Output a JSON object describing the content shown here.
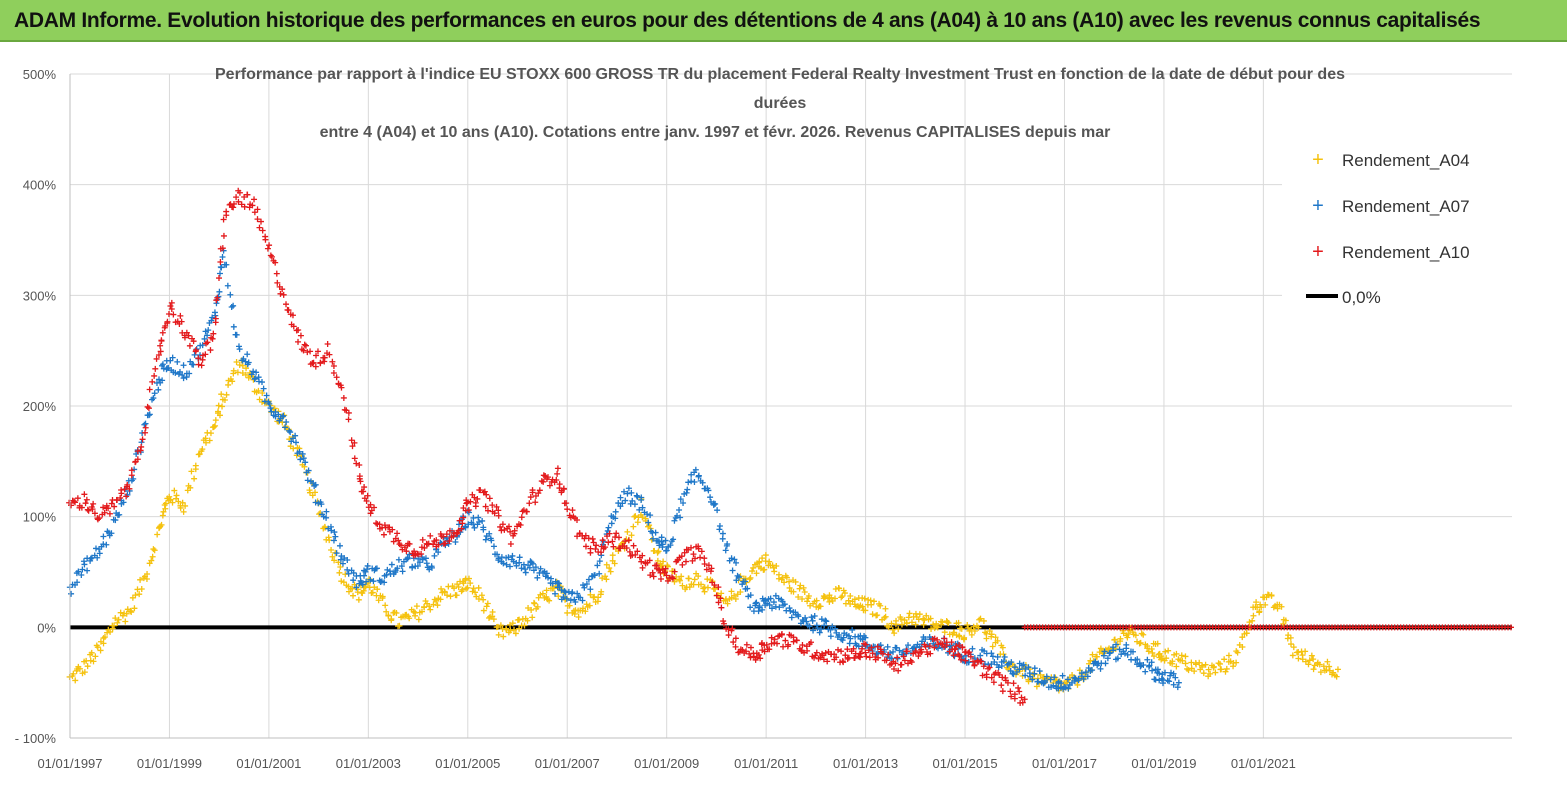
{
  "banner": {
    "text": "ADAM Informe. Evolution historique des performances en euros pour des détentions de 4 ans (A04) à 10 ans (A10) avec les revenus connus capitalisés"
  },
  "colors": {
    "banner_bg": "#8fcf5c",
    "a04": "#f5c20f",
    "a07": "#1f77c8",
    "a10": "#e31a1c",
    "zero": "#000000",
    "grid": "#d9d9d9"
  },
  "chart_data": {
    "type": "scatter",
    "title_lines": [
      "Performance par rapport à l'indice EU STOXX 600 GROSS TR  du placement Federal Realty Investment Trust en fonction de la date de début pour des",
      "durées",
      "entre 4 (A04) et 10 ans (A10). Cotations entre janv. 1997 et févr. 2026. Revenus CAPITALISES depuis mar"
    ],
    "xlabel": "",
    "ylabel": "",
    "xlim": [
      1997.0,
      2026.0
    ],
    "ylim": [
      -100,
      500
    ],
    "ytick_values": [
      -100,
      0,
      100,
      200,
      300,
      400,
      500
    ],
    "ytick_labels": [
      "- 100%",
      "0%",
      "100%",
      "200%",
      "300%",
      "400%",
      "500%"
    ],
    "xtick_values": [
      1997,
      1999,
      2001,
      2003,
      2005,
      2007,
      2009,
      2011,
      2013,
      2015,
      2017,
      2019,
      2021
    ],
    "xtick_labels": [
      "01/01/1997",
      "01/01/1999",
      "01/01/2001",
      "01/01/2003",
      "01/01/2005",
      "01/01/2007",
      "01/01/2009",
      "01/01/2011",
      "01/01/2013",
      "01/01/2015",
      "01/01/2017",
      "01/01/2019",
      "01/01/2021"
    ],
    "grid": true,
    "legend_position": "top-right",
    "series": [
      {
        "name": "Rendement_A04",
        "marker": "+",
        "color": "#f5c20f",
        "x": [
          1997.0,
          1997.3,
          1997.6,
          1997.9,
          1998.2,
          1998.5,
          1998.8,
          1999.0,
          1999.3,
          1999.6,
          1999.9,
          2000.1,
          2000.4,
          2000.7,
          2001.0,
          2001.3,
          2001.6,
          2001.9,
          2002.2,
          2002.5,
          2002.8,
          2003.0,
          2003.3,
          2003.6,
          2003.9,
          2004.2,
          2004.5,
          2004.8,
          2005.0,
          2005.3,
          2005.6,
          2005.9,
          2006.2,
          2006.5,
          2006.8,
          2007.0,
          2007.3,
          2007.6,
          2007.9,
          2008.2,
          2008.5,
          2008.8,
          2009.0,
          2009.3,
          2009.6,
          2009.9,
          2010.2,
          2010.5,
          2010.8,
          2011.0,
          2011.3,
          2011.6,
          2011.9,
          2012.2,
          2012.5,
          2012.8,
          2013.0,
          2013.3,
          2013.6,
          2013.9,
          2014.2,
          2014.5,
          2014.8,
          2015.0,
          2015.3,
          2015.6,
          2015.9,
          2016.2,
          2016.5,
          2016.8,
          2017.0,
          2017.3,
          2017.6,
          2017.9,
          2018.2,
          2018.5,
          2018.8,
          2019.0,
          2019.3,
          2019.6,
          2019.9,
          2020.2,
          2020.5,
          2020.8,
          2021.0,
          2021.3,
          2021.6,
          2021.9,
          2022.2,
          2022.5
        ],
        "y": [
          -47,
          -35,
          -20,
          5,
          15,
          45,
          90,
          120,
          110,
          160,
          180,
          210,
          240,
          220,
          200,
          185,
          155,
          120,
          80,
          45,
          30,
          40,
          20,
          5,
          10,
          20,
          30,
          35,
          40,
          25,
          -5,
          -3,
          10,
          25,
          35,
          20,
          15,
          30,
          60,
          80,
          110,
          65,
          50,
          40,
          45,
          35,
          20,
          40,
          55,
          60,
          45,
          35,
          25,
          25,
          30,
          20,
          20,
          15,
          0,
          10,
          5,
          0,
          0,
          -5,
          5,
          -15,
          -35,
          -40,
          -50,
          -50,
          -55,
          -45,
          -30,
          -20,
          -5,
          -10,
          -20,
          -25,
          -30,
          -35,
          -40,
          -35,
          -25,
          15,
          25,
          20,
          -20,
          -30,
          -35,
          -38
        ]
      },
      {
        "name": "Rendement_A07",
        "marker": "+",
        "color": "#1f77c8",
        "x": [
          1997.0,
          1997.3,
          1997.6,
          1997.9,
          1998.2,
          1998.5,
          1998.8,
          1999.0,
          1999.3,
          1999.6,
          1999.9,
          2000.1,
          2000.4,
          2000.7,
          2001.0,
          2001.3,
          2001.6,
          2001.9,
          2002.2,
          2002.5,
          2002.8,
          2003.0,
          2003.3,
          2003.6,
          2003.9,
          2004.2,
          2004.5,
          2004.8,
          2005.0,
          2005.3,
          2005.6,
          2005.9,
          2006.2,
          2006.5,
          2006.8,
          2007.0,
          2007.3,
          2007.6,
          2007.9,
          2008.2,
          2008.5,
          2008.8,
          2009.0,
          2009.3,
          2009.6,
          2009.9,
          2010.2,
          2010.5,
          2010.8,
          2011.0,
          2011.3,
          2011.6,
          2011.9,
          2012.2,
          2012.5,
          2012.8,
          2013.0,
          2013.3,
          2013.6,
          2013.9,
          2014.2,
          2014.5,
          2014.8,
          2015.0,
          2015.3,
          2015.6,
          2015.9,
          2016.2,
          2016.5,
          2016.8,
          2017.0,
          2017.3,
          2017.6,
          2017.9,
          2018.2,
          2018.5,
          2018.8,
          2019.0,
          2019.3
        ],
        "y": [
          35,
          55,
          70,
          95,
          130,
          180,
          225,
          240,
          230,
          250,
          280,
          340,
          250,
          230,
          200,
          190,
          160,
          125,
          95,
          60,
          40,
          50,
          45,
          55,
          60,
          55,
          75,
          85,
          100,
          90,
          65,
          60,
          55,
          45,
          35,
          25,
          30,
          50,
          100,
          120,
          110,
          80,
          70,
          110,
          140,
          120,
          70,
          40,
          15,
          25,
          20,
          10,
          5,
          0,
          -5,
          -10,
          -15,
          -20,
          -25,
          -20,
          -15,
          -15,
          -20,
          -25,
          -25,
          -30,
          -35,
          -40,
          -45,
          -50,
          -50,
          -45,
          -35,
          -25,
          -20,
          -30,
          -40,
          -45,
          -50
        ]
      },
      {
        "name": "Rendement_A10",
        "marker": "+",
        "color": "#e31a1c",
        "x": [
          1997.0,
          1997.3,
          1997.6,
          1997.9,
          1998.2,
          1998.5,
          1998.8,
          1999.0,
          1999.3,
          1999.6,
          1999.9,
          2000.1,
          2000.4,
          2000.7,
          2001.0,
          2001.3,
          2001.6,
          2001.9,
          2002.2,
          2002.5,
          2002.8,
          2003.0,
          2003.3,
          2003.6,
          2003.9,
          2004.2,
          2004.5,
          2004.8,
          2005.0,
          2005.3,
          2005.6,
          2005.9,
          2006.2,
          2006.5,
          2006.8,
          2007.0,
          2007.3,
          2007.6,
          2007.9,
          2008.2,
          2008.5,
          2008.8,
          2009.0,
          2009.3,
          2009.6,
          2009.9,
          2010.2,
          2010.5,
          2010.8,
          2011.0,
          2011.3,
          2011.6,
          2011.9,
          2012.2,
          2012.5,
          2012.8,
          2013.0,
          2013.3,
          2013.6,
          2013.9,
          2014.2,
          2014.5,
          2014.8,
          2015.0,
          2015.3,
          2015.6,
          2015.9,
          2016.2
        ],
        "y": [
          110,
          115,
          100,
          110,
          130,
          180,
          250,
          290,
          270,
          240,
          260,
          370,
          390,
          380,
          340,
          300,
          260,
          240,
          250,
          210,
          140,
          110,
          90,
          80,
          70,
          75,
          80,
          90,
          110,
          120,
          100,
          80,
          110,
          130,
          140,
          110,
          80,
          70,
          80,
          75,
          60,
          50,
          45,
          60,
          70,
          50,
          0,
          -20,
          -25,
          -15,
          -10,
          -15,
          -20,
          -25,
          -25,
          -25,
          -20,
          -25,
          -35,
          -25,
          -20,
          -15,
          -20,
          -25,
          -35,
          -45,
          -55,
          -65
        ]
      }
    ],
    "reference_line": {
      "name": "0,0%",
      "y": 0,
      "color": "#000000"
    }
  }
}
